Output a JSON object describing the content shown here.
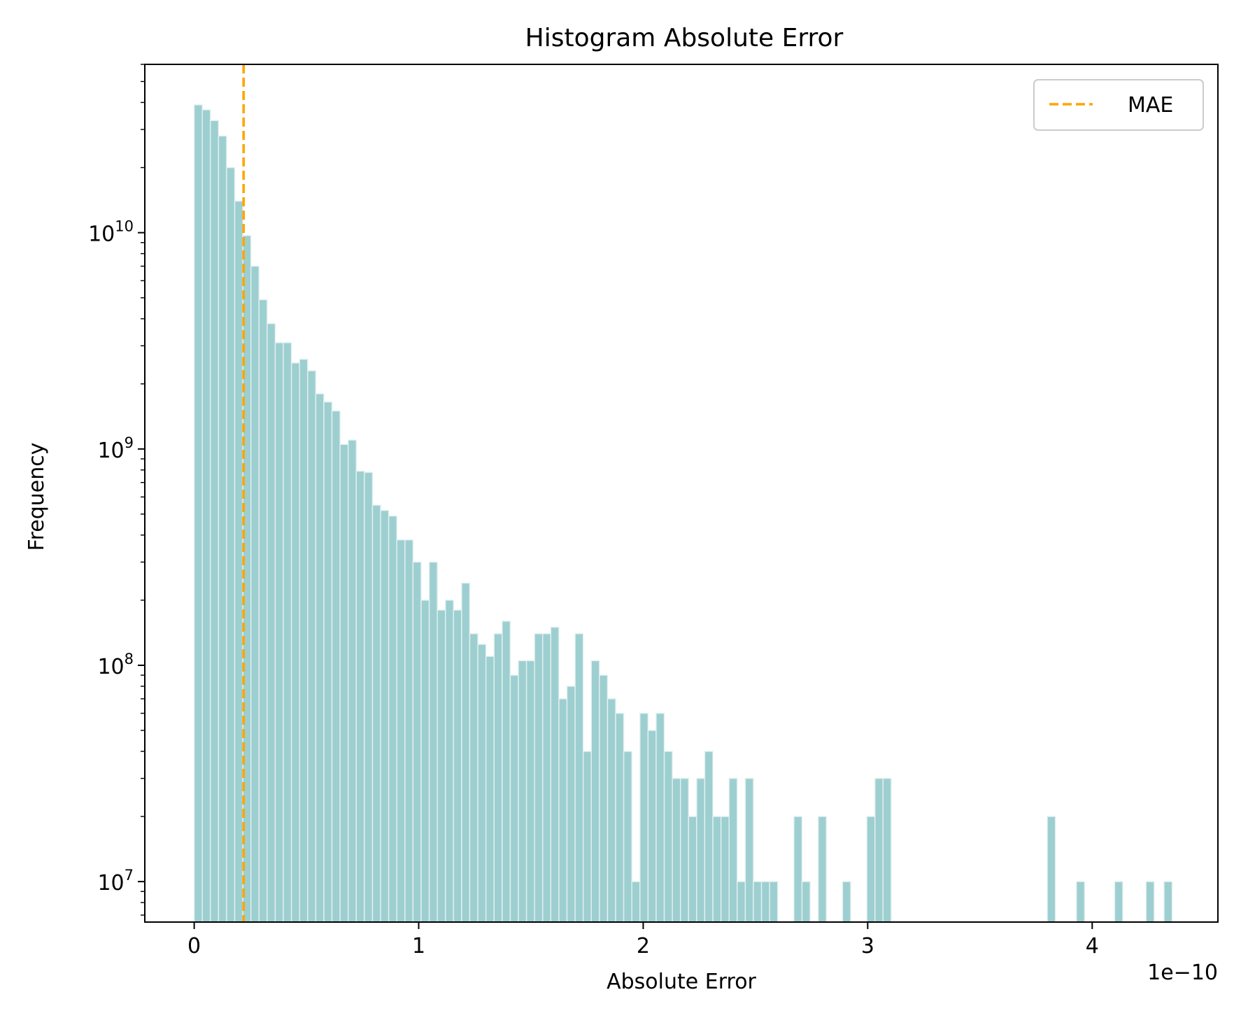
{
  "chart_data": {
    "type": "bar",
    "title": "Histogram Absolute Error",
    "xlabel": "Absolute Error",
    "ylabel": "Frequency",
    "x_offset_text": "1e−10",
    "x_scale_exponent": -10,
    "yscale": "log",
    "xlim": [
      -0.22,
      4.56
    ],
    "ylim": [
      6500000.0,
      60000000000.0
    ],
    "x_ticks": [
      0,
      1,
      2,
      3,
      4
    ],
    "x_tick_labels": [
      "0",
      "1",
      "2",
      "3",
      "4"
    ],
    "y_ticks": [
      10000000.0,
      100000000.0,
      1000000000.0,
      10000000000.0
    ],
    "y_tick_labels": [
      {
        "base": "10",
        "exp": "7"
      },
      {
        "base": "10",
        "exp": "8"
      },
      {
        "base": "10",
        "exp": "9"
      },
      {
        "base": "10",
        "exp": "10"
      }
    ],
    "bin_start": 0,
    "bin_width": 0.0361,
    "bar_color": "#9ecfd0",
    "bar_edge_color": "#e3f1f1",
    "counts": [
      39000000000.0,
      37000000000.0,
      33000000000.0,
      28000000000.0,
      20000000000.0,
      14000000000.0,
      9700000000.0,
      7000000000.0,
      4900000000.0,
      3800000000.0,
      3100000000.0,
      3100000000.0,
      2500000000.0,
      2600000000.0,
      2300000000.0,
      1800000000.0,
      1650000000.0,
      1500000000.0,
      1050000000.0,
      1100000000.0,
      790000000.0,
      780000000.0,
      550000000.0,
      520000000.0,
      490000000.0,
      380000000.0,
      380000000.0,
      300000000.0,
      200000000.0,
      300000000.0,
      180000000.0,
      200000000.0,
      180000000.0,
      240000000.0,
      140000000.0,
      125000000.0,
      110000000.0,
      140000000.0,
      160000000.0,
      90000000.0,
      105000000.0,
      105000000.0,
      140000000.0,
      140000000.0,
      150000000.0,
      70000000.0,
      80000000.0,
      140000000.0,
      40000000.0,
      105000000.0,
      90000000.0,
      70000000.0,
      60000000.0,
      40000000.0,
      10000000.0,
      60000000.0,
      50000000.0,
      60000000.0,
      40000000.0,
      30000000.0,
      30000000.0,
      20000000.0,
      30000000.0,
      40000000.0,
      20000000.0,
      20000000.0,
      30000000.0,
      10000000.0,
      30000000.0,
      10000000.0,
      10000000.0,
      10000000.0,
      0,
      0,
      20000000.0,
      10000000.0,
      0,
      20000000.0,
      0,
      0,
      10000000.0,
      0,
      0,
      20000000.0,
      30000000.0,
      30000000.0,
      0,
      0,
      0,
      0,
      0,
      0,
      0,
      0,
      0,
      0,
      0,
      0,
      0,
      0,
      0,
      0,
      0,
      0,
      0,
      0,
      0,
      0,
      0,
      0,
      0,
      0,
      0,
      0,
      0,
      0,
      0,
      0,
      0,
      0
    ],
    "extra_bars": [
      {
        "x": 3.8,
        "value": 20000000.0
      },
      {
        "x": 3.93,
        "value": 10000000.0
      },
      {
        "x": 4.1,
        "value": 10000000.0
      },
      {
        "x": 4.24,
        "value": 10000000.0
      },
      {
        "x": 4.32,
        "value": 10000000.0
      }
    ],
    "mae": 0.22,
    "mae_color": "#ffa500",
    "legend": {
      "label": "MAE",
      "position": "upper right"
    }
  }
}
